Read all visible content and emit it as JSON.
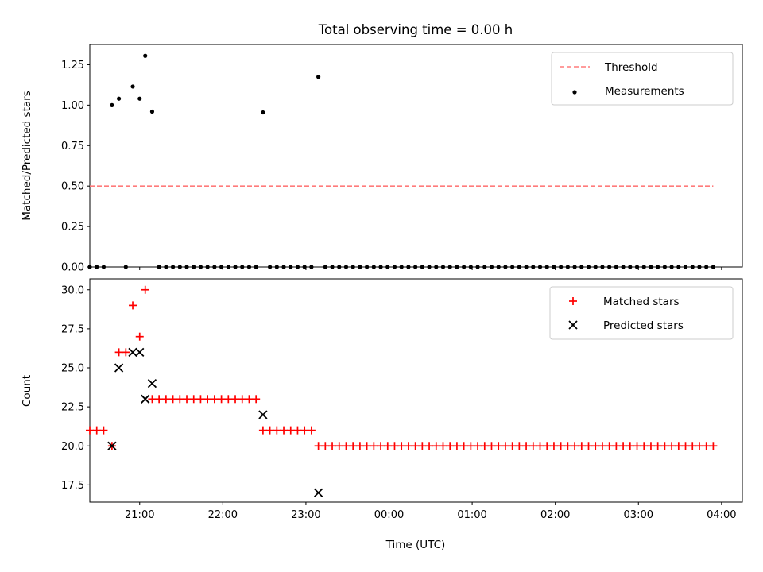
{
  "chart_data": [
    {
      "type": "scatter",
      "title": "Total observing time = 0.00 h",
      "xlabel": "",
      "ylabel": "Matched/Predicted stars",
      "ylim": [
        0,
        1.375
      ],
      "yticks": [
        "0.00",
        "0.25",
        "0.50",
        "0.75",
        "1.00",
        "1.25"
      ],
      "x_axis": {
        "type": "time",
        "range": [
          "20:24",
          "04:15"
        ],
        "tick_labels_shown": false
      },
      "legend": {
        "position": "top-right",
        "entries": [
          "Threshold",
          "Measurements"
        ]
      },
      "threshold": {
        "name": "Threshold",
        "y": 0.5,
        "x_start": "20:24",
        "x_end": "03:54",
        "color": "#ff7b7b",
        "style": "dashed"
      },
      "series": [
        {
          "name": "Measurements",
          "color": "#000000",
          "marker": "dot",
          "points": [
            [
              "20:24",
              0.0
            ],
            [
              "20:29",
              0.0
            ],
            [
              "20:34",
              0.0
            ],
            [
              "20:40",
              1.0
            ],
            [
              "20:45",
              1.04
            ],
            [
              "20:50",
              0.0
            ],
            [
              "20:55",
              1.115
            ],
            [
              "21:00",
              1.04
            ],
            [
              "21:04",
              1.305
            ],
            [
              "21:09",
              0.96
            ],
            [
              "21:14",
              0.0
            ],
            [
              "21:19",
              0.0
            ],
            [
              "21:24",
              0.0
            ],
            [
              "21:29",
              0.0
            ],
            [
              "21:34",
              0.0
            ],
            [
              "21:39",
              0.0
            ],
            [
              "21:44",
              0.0
            ],
            [
              "21:49",
              0.0
            ],
            [
              "21:54",
              0.0
            ],
            [
              "21:59",
              0.0
            ],
            [
              "22:04",
              0.0
            ],
            [
              "22:09",
              0.0
            ],
            [
              "22:14",
              0.0
            ],
            [
              "22:19",
              0.0
            ],
            [
              "22:24",
              0.0
            ],
            [
              "22:29",
              0.955
            ],
            [
              "22:34",
              0.0
            ],
            [
              "22:39",
              0.0
            ],
            [
              "22:44",
              0.0
            ],
            [
              "22:49",
              0.0
            ],
            [
              "22:54",
              0.0
            ],
            [
              "22:59",
              0.0
            ],
            [
              "23:04",
              0.0
            ],
            [
              "23:09",
              1.175
            ],
            [
              "23:14",
              0.0
            ],
            [
              "23:19",
              0.0
            ],
            [
              "23:24",
              0.0
            ],
            [
              "23:29",
              0.0
            ],
            [
              "23:34",
              0.0
            ],
            [
              "23:39",
              0.0
            ],
            [
              "23:44",
              0.0
            ],
            [
              "23:49",
              0.0
            ],
            [
              "23:54",
              0.0
            ],
            [
              "23:59",
              0.0
            ],
            [
              "00:04",
              0.0
            ],
            [
              "00:09",
              0.0
            ],
            [
              "00:14",
              0.0
            ],
            [
              "00:19",
              0.0
            ],
            [
              "00:24",
              0.0
            ],
            [
              "00:29",
              0.0
            ],
            [
              "00:34",
              0.0
            ],
            [
              "00:39",
              0.0
            ],
            [
              "00:44",
              0.0
            ],
            [
              "00:49",
              0.0
            ],
            [
              "00:54",
              0.0
            ],
            [
              "00:59",
              0.0
            ],
            [
              "01:04",
              0.0
            ],
            [
              "01:09",
              0.0
            ],
            [
              "01:14",
              0.0
            ],
            [
              "01:19",
              0.0
            ],
            [
              "01:24",
              0.0
            ],
            [
              "01:29",
              0.0
            ],
            [
              "01:34",
              0.0
            ],
            [
              "01:39",
              0.0
            ],
            [
              "01:44",
              0.0
            ],
            [
              "01:49",
              0.0
            ],
            [
              "01:54",
              0.0
            ],
            [
              "01:59",
              0.0
            ],
            [
              "02:04",
              0.0
            ],
            [
              "02:09",
              0.0
            ],
            [
              "02:14",
              0.0
            ],
            [
              "02:19",
              0.0
            ],
            [
              "02:24",
              0.0
            ],
            [
              "02:29",
              0.0
            ],
            [
              "02:34",
              0.0
            ],
            [
              "02:39",
              0.0
            ],
            [
              "02:44",
              0.0
            ],
            [
              "02:49",
              0.0
            ],
            [
              "02:54",
              0.0
            ],
            [
              "02:59",
              0.0
            ],
            [
              "03:04",
              0.0
            ],
            [
              "03:09",
              0.0
            ],
            [
              "03:14",
              0.0
            ],
            [
              "03:19",
              0.0
            ],
            [
              "03:24",
              0.0
            ],
            [
              "03:29",
              0.0
            ],
            [
              "03:34",
              0.0
            ],
            [
              "03:39",
              0.0
            ],
            [
              "03:44",
              0.0
            ],
            [
              "03:49",
              0.0
            ],
            [
              "03:54",
              0.0
            ]
          ]
        }
      ]
    },
    {
      "type": "scatter",
      "xlabel": "Time (UTC)",
      "ylabel": "Count",
      "ylim": [
        16.4,
        30.7
      ],
      "yticks": [
        "17.5",
        "20.0",
        "22.5",
        "25.0",
        "27.5",
        "30.0"
      ],
      "x_axis": {
        "type": "time",
        "range": [
          "20:24",
          "04:15"
        ]
      },
      "xticks": [
        "21:00",
        "22:00",
        "23:00",
        "00:00",
        "01:00",
        "02:00",
        "03:00",
        "04:00"
      ],
      "legend": {
        "position": "top-right",
        "entries": [
          "Matched stars",
          "Predicted stars"
        ]
      },
      "series": [
        {
          "name": "Matched stars",
          "color": "#ff0000",
          "marker": "plus",
          "points": [
            [
              "20:24",
              21
            ],
            [
              "20:29",
              21
            ],
            [
              "20:34",
              21
            ],
            [
              "20:40",
              20
            ],
            [
              "20:45",
              26
            ],
            [
              "20:50",
              26
            ],
            [
              "20:55",
              29
            ],
            [
              "21:00",
              27
            ],
            [
              "21:04",
              30
            ],
            [
              "21:09",
              23
            ],
            [
              "21:14",
              23
            ],
            [
              "21:19",
              23
            ],
            [
              "21:24",
              23
            ],
            [
              "21:29",
              23
            ],
            [
              "21:34",
              23
            ],
            [
              "21:39",
              23
            ],
            [
              "21:44",
              23
            ],
            [
              "21:49",
              23
            ],
            [
              "21:54",
              23
            ],
            [
              "21:59",
              23
            ],
            [
              "22:04",
              23
            ],
            [
              "22:09",
              23
            ],
            [
              "22:14",
              23
            ],
            [
              "22:19",
              23
            ],
            [
              "22:24",
              23
            ],
            [
              "22:29",
              21
            ],
            [
              "22:34",
              21
            ],
            [
              "22:39",
              21
            ],
            [
              "22:44",
              21
            ],
            [
              "22:49",
              21
            ],
            [
              "22:54",
              21
            ],
            [
              "22:59",
              21
            ],
            [
              "23:04",
              21
            ],
            [
              "23:09",
              20
            ],
            [
              "23:14",
              20
            ],
            [
              "23:19",
              20
            ],
            [
              "23:24",
              20
            ],
            [
              "23:29",
              20
            ],
            [
              "23:34",
              20
            ],
            [
              "23:39",
              20
            ],
            [
              "23:44",
              20
            ],
            [
              "23:49",
              20
            ],
            [
              "23:54",
              20
            ],
            [
              "23:59",
              20
            ],
            [
              "00:04",
              20
            ],
            [
              "00:09",
              20
            ],
            [
              "00:14",
              20
            ],
            [
              "00:19",
              20
            ],
            [
              "00:24",
              20
            ],
            [
              "00:29",
              20
            ],
            [
              "00:34",
              20
            ],
            [
              "00:39",
              20
            ],
            [
              "00:44",
              20
            ],
            [
              "00:49",
              20
            ],
            [
              "00:54",
              20
            ],
            [
              "00:59",
              20
            ],
            [
              "01:04",
              20
            ],
            [
              "01:09",
              20
            ],
            [
              "01:14",
              20
            ],
            [
              "01:19",
              20
            ],
            [
              "01:24",
              20
            ],
            [
              "01:29",
              20
            ],
            [
              "01:34",
              20
            ],
            [
              "01:39",
              20
            ],
            [
              "01:44",
              20
            ],
            [
              "01:49",
              20
            ],
            [
              "01:54",
              20
            ],
            [
              "01:59",
              20
            ],
            [
              "02:04",
              20
            ],
            [
              "02:09",
              20
            ],
            [
              "02:14",
              20
            ],
            [
              "02:19",
              20
            ],
            [
              "02:24",
              20
            ],
            [
              "02:29",
              20
            ],
            [
              "02:34",
              20
            ],
            [
              "02:39",
              20
            ],
            [
              "02:44",
              20
            ],
            [
              "02:49",
              20
            ],
            [
              "02:54",
              20
            ],
            [
              "02:59",
              20
            ],
            [
              "03:04",
              20
            ],
            [
              "03:09",
              20
            ],
            [
              "03:14",
              20
            ],
            [
              "03:19",
              20
            ],
            [
              "03:24",
              20
            ],
            [
              "03:29",
              20
            ],
            [
              "03:34",
              20
            ],
            [
              "03:39",
              20
            ],
            [
              "03:44",
              20
            ],
            [
              "03:49",
              20
            ],
            [
              "03:54",
              20
            ]
          ]
        },
        {
          "name": "Predicted stars",
          "color": "#000000",
          "marker": "x",
          "points": [
            [
              "20:40",
              20
            ],
            [
              "20:45",
              25
            ],
            [
              "20:55",
              26
            ],
            [
              "21:00",
              26
            ],
            [
              "21:04",
              23
            ],
            [
              "21:09",
              24
            ],
            [
              "22:29",
              22
            ],
            [
              "23:09",
              17
            ]
          ]
        }
      ]
    }
  ]
}
